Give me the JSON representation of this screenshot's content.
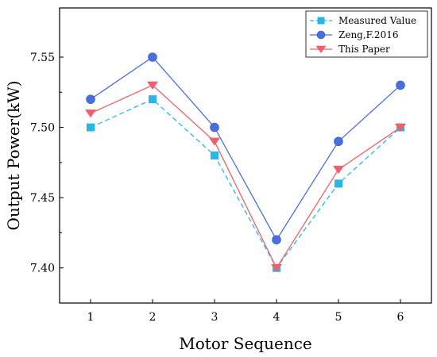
{
  "chart_data": {
    "type": "line",
    "title": "",
    "xlabel": "Motor Sequence",
    "ylabel": "Output Power(kW)",
    "x": [
      1,
      2,
      3,
      4,
      5,
      6
    ],
    "x_tick_labels": [
      "1",
      "2",
      "3",
      "4",
      "5",
      "6"
    ],
    "xlim": [
      0.5,
      6.5
    ],
    "ylim": [
      7.375,
      7.585
    ],
    "y_ticks": [
      7.4,
      7.45,
      7.5,
      7.55
    ],
    "y_tick_labels": [
      "7.40",
      "7.45",
      "7.50",
      "7.55"
    ],
    "grid": false,
    "legend_position": "top-right",
    "series": [
      {
        "name": "Measured Value",
        "values": [
          7.5,
          7.52,
          7.48,
          7.4,
          7.46,
          7.5
        ],
        "color": "#29b6e8",
        "line_style": "dashed",
        "marker": "square"
      },
      {
        "name": "Zeng,F.2016",
        "values": [
          7.52,
          7.55,
          7.5,
          7.42,
          7.49,
          7.53
        ],
        "color": "#4b6ede",
        "line_style": "solid",
        "marker": "circle"
      },
      {
        "name": "This Paper",
        "values": [
          7.51,
          7.53,
          7.49,
          7.4,
          7.47,
          7.5
        ],
        "color": "#f0606a",
        "line_style": "solid",
        "marker": "triangle-down"
      }
    ]
  }
}
